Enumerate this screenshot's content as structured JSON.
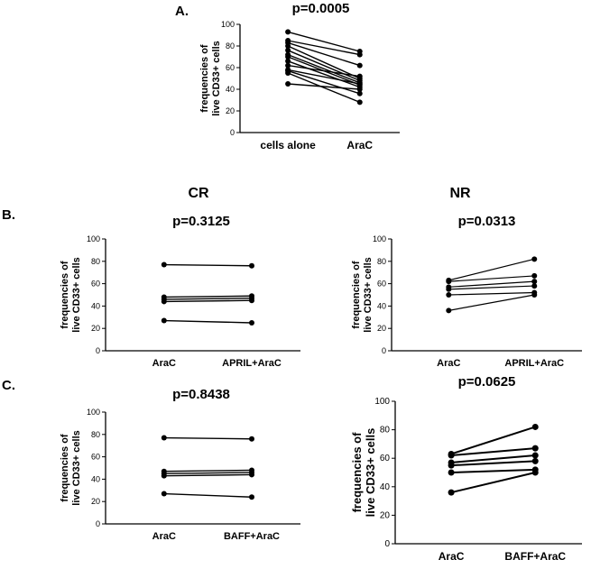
{
  "figure": {
    "background": "#ffffff",
    "ink_color": "#000000",
    "panel_a_label": "A.",
    "panel_b_label": "B.",
    "panel_c_label": "C.",
    "column_headers": {
      "left": "CR",
      "right": "NR"
    }
  },
  "chart_data": [
    {
      "id": "panel-A",
      "type": "line",
      "subtype": "paired-dot-line",
      "title": "p=0.0005",
      "ylabel": "frequencies of live CD33+ cells",
      "ylabel_lines": [
        "frequencies of",
        "live CD33+ cells"
      ],
      "categories": [
        "cells alone",
        "AraC"
      ],
      "ylim": [
        0,
        100
      ],
      "yticks": [
        0,
        20,
        40,
        60,
        80,
        100
      ],
      "grid": false,
      "legend": false,
      "pairs": [
        [
          93,
          75
        ],
        [
          85,
          72
        ],
        [
          83,
          62
        ],
        [
          80,
          50
        ],
        [
          76,
          48
        ],
        [
          72,
          46
        ],
        [
          70,
          44
        ],
        [
          66,
          42
        ],
        [
          62,
          52
        ],
        [
          58,
          45
        ],
        [
          57,
          36
        ],
        [
          55,
          28
        ],
        [
          45,
          40
        ]
      ]
    },
    {
      "id": "panel-B-CR",
      "type": "line",
      "subtype": "paired-dot-line",
      "title": "p=0.3125",
      "ylabel": "frequencies of live CD33+ cells",
      "ylabel_lines": [
        "frequencies of",
        "live CD33+ cells"
      ],
      "categories": [
        "AraC",
        "APRIL+AraC"
      ],
      "ylim": [
        0,
        100
      ],
      "yticks": [
        0,
        20,
        40,
        60,
        80,
        100
      ],
      "grid": false,
      "legend": false,
      "pairs": [
        [
          77,
          76
        ],
        [
          48,
          49
        ],
        [
          46,
          47
        ],
        [
          44,
          45
        ],
        [
          27,
          25
        ]
      ]
    },
    {
      "id": "panel-B-NR",
      "type": "line",
      "subtype": "paired-dot-line",
      "title": "p=0.0313",
      "ylabel": "frequencies of live CD33+ cells",
      "ylabel_lines": [
        "frequencies of",
        "live CD33+ cells"
      ],
      "categories": [
        "AraC",
        "APRIL+AraC"
      ],
      "ylim": [
        0,
        100
      ],
      "yticks": [
        0,
        20,
        40,
        60,
        80,
        100
      ],
      "grid": false,
      "legend": false,
      "pairs": [
        [
          63,
          82
        ],
        [
          62,
          67
        ],
        [
          57,
          62
        ],
        [
          55,
          58
        ],
        [
          50,
          52
        ],
        [
          36,
          50
        ]
      ]
    },
    {
      "id": "panel-C-CR",
      "type": "line",
      "subtype": "paired-dot-line",
      "title": "p=0.8438",
      "ylabel": "frequencies of live CD33+ cells",
      "ylabel_lines": [
        "frequencies of",
        "live CD33+ cells"
      ],
      "categories": [
        "AraC",
        "BAFF+AraC"
      ],
      "ylim": [
        0,
        100
      ],
      "yticks": [
        0,
        20,
        40,
        60,
        80,
        100
      ],
      "grid": false,
      "legend": false,
      "pairs": [
        [
          77,
          76
        ],
        [
          47,
          48
        ],
        [
          45,
          46
        ],
        [
          43,
          44
        ],
        [
          27,
          24
        ]
      ]
    },
    {
      "id": "panel-C-NR",
      "type": "line",
      "subtype": "paired-dot-line",
      "title": "p=0.0625",
      "ylabel": "frequencies of live CD33+ cells",
      "ylabel_lines": [
        "frequencies of",
        "live CD33+ cells"
      ],
      "categories": [
        "AraC",
        "BAFF+AraC"
      ],
      "ylim": [
        0,
        100
      ],
      "yticks": [
        0,
        20,
        40,
        60,
        80,
        100
      ],
      "grid": false,
      "legend": false,
      "pairs": [
        [
          63,
          82
        ],
        [
          62,
          67
        ],
        [
          57,
          62
        ],
        [
          55,
          58
        ],
        [
          50,
          52
        ],
        [
          36,
          50
        ]
      ]
    }
  ]
}
